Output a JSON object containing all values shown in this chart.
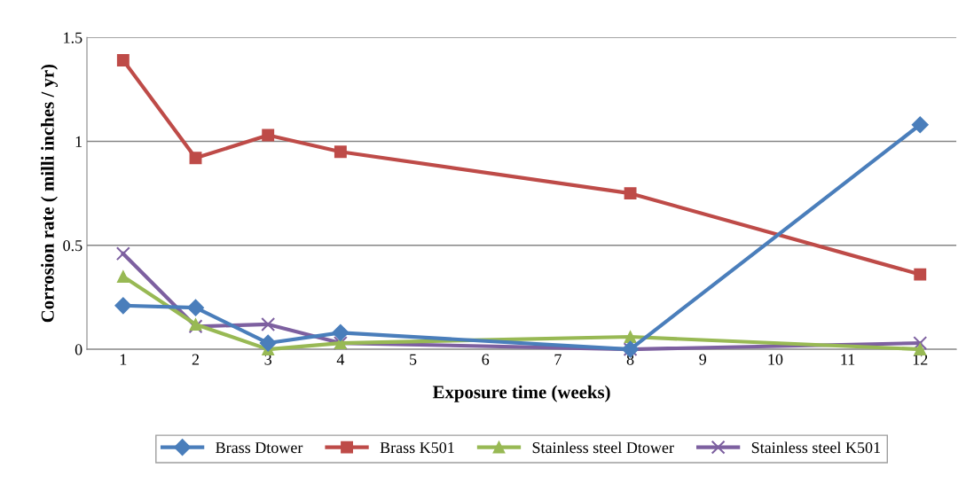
{
  "chart_data": {
    "type": "line",
    "xlabel": "Exposure time (weeks)",
    "ylabel": "Corrosion rate ( milli inches / yr)",
    "categories": [
      "1",
      "2",
      "3",
      "4",
      "5",
      "6",
      "7",
      "8",
      "9",
      "10",
      "11",
      "12"
    ],
    "ylim": [
      0,
      1.5
    ],
    "yticks": [
      0,
      0.5,
      1,
      1.5
    ],
    "grid": "y",
    "legend": "bottom",
    "series": [
      {
        "name": "Brass Dtower",
        "color": "#4a7ebb",
        "marker": "diamond",
        "values": [
          0.21,
          0.2,
          0.03,
          0.08,
          null,
          null,
          null,
          0,
          null,
          null,
          null,
          1.08
        ]
      },
      {
        "name": "Brass K501",
        "color": "#be4b48",
        "marker": "square",
        "values": [
          1.39,
          0.92,
          1.03,
          0.95,
          null,
          null,
          null,
          0.75,
          null,
          null,
          null,
          0.36
        ]
      },
      {
        "name": "Stainless steel Dtower",
        "color": "#98b954",
        "marker": "triangle",
        "values": [
          0.35,
          0.12,
          0,
          0.03,
          null,
          null,
          null,
          0.06,
          null,
          null,
          null,
          0
        ]
      },
      {
        "name": "Stainless steel K501",
        "color": "#7d60a0",
        "marker": "cross",
        "values": [
          0.46,
          0.11,
          0.12,
          0.03,
          null,
          null,
          null,
          0,
          null,
          null,
          null,
          0.03
        ]
      }
    ]
  }
}
